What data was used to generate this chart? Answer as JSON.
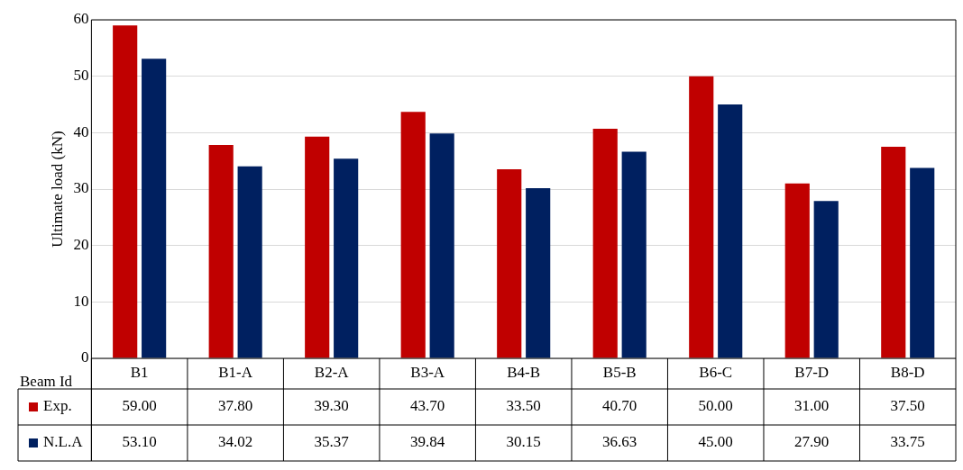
{
  "chart_data": {
    "type": "bar",
    "ylabel": "Ultimate load (kN)",
    "xlabel": "Beam Id",
    "categories": [
      "B1",
      "B1-A",
      "B2-A",
      "B3-A",
      "B4-B",
      "B5-B",
      "B6-C",
      "B7-D",
      "B8-D"
    ],
    "series": [
      {
        "name": "Exp.",
        "color": "#c00000",
        "values": [
          59.0,
          37.8,
          39.3,
          43.7,
          33.5,
          40.7,
          50.0,
          31.0,
          37.5
        ],
        "value_labels": [
          "59.00",
          "37.80",
          "39.30",
          "43.70",
          "33.50",
          "40.70",
          "50.00",
          "31.00",
          "37.50"
        ]
      },
      {
        "name": "N.L.A",
        "color": "#002060",
        "values": [
          53.1,
          34.02,
          35.37,
          39.84,
          30.15,
          36.63,
          45.0,
          27.9,
          33.75
        ],
        "value_labels": [
          "53.10",
          "34.02",
          "35.37",
          "39.84",
          "30.15",
          "36.63",
          "45.00",
          "27.90",
          "33.75"
        ]
      }
    ],
    "ylim": [
      0,
      60
    ],
    "yticks": [
      0,
      10,
      20,
      30,
      40,
      50,
      60
    ],
    "grid": "y",
    "legend": "bottom left"
  }
}
